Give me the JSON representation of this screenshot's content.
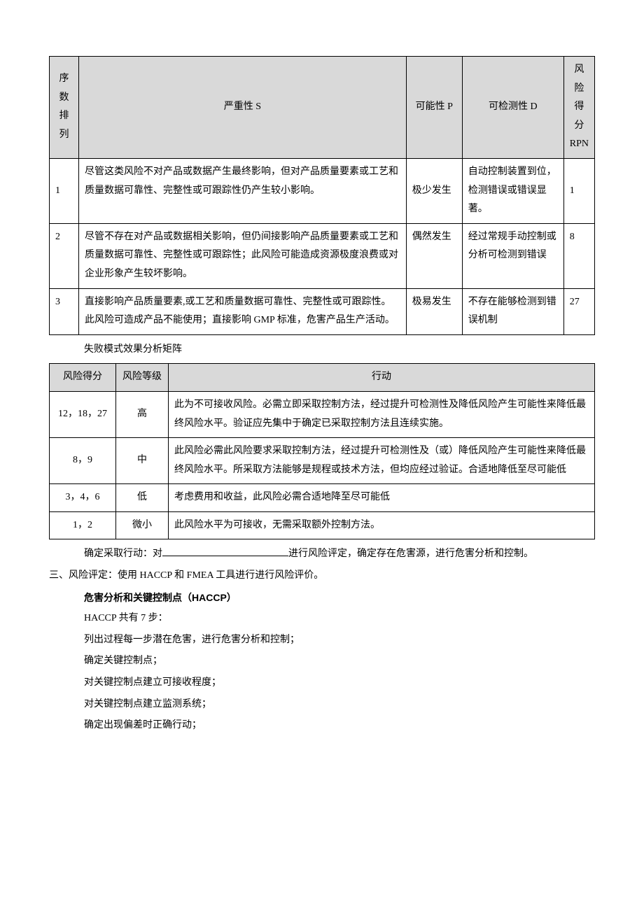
{
  "table1": {
    "headers": {
      "seq": "序数排列",
      "severity": "严重性 S",
      "probability": "可能性 P",
      "detectability": "可检测性 D",
      "rpn": "风险得分RPN"
    },
    "rows": [
      {
        "seq": "1",
        "severity": "尽管这类风险不对产品或数据产生最终影响，但对产品质量要素或工艺和质量数据可靠性、完整性或可跟踪性仍产生较小影响。",
        "probability": "极少发生",
        "detectability": "自动控制装置到位，检测错误或错误显著。",
        "rpn": "1"
      },
      {
        "seq": "2",
        "severity": "尽管不存在对产品或数据相关影响，但仍间接影响产品质量要素或工艺和质量数据可靠性、完整性或可跟踪性；此风险可能造成资源极度浪费或对企业形象产生较坏影响。",
        "probability": "偶然发生",
        "detectability": "经过常规手动控制或分析可检测到错误",
        "rpn": "8"
      },
      {
        "seq": "3",
        "severity": "直接影响产品质量要素,或工艺和质量数据可靠性、完整性或可跟踪性。此风险可造成产品不能使用；直接影响 GMP 标准，危害产品生产活动。",
        "probability": "极易发生",
        "detectability": "不存在能够检测到错误机制",
        "rpn": "27"
      }
    ]
  },
  "caption1": "失败模式效果分析矩阵",
  "table2": {
    "headers": {
      "score": "风险得分",
      "level": "风险等级",
      "action": "行动"
    },
    "rows": [
      {
        "score": "12，18，27",
        "level": "高",
        "action": "此为不可接收风险。必需立即采取控制方法，经过提升可检测性及降低风险产生可能性来降低最终风险水平。验证应先集中于确定已采取控制方法且连续实施。"
      },
      {
        "score": "8，9",
        "level": "中",
        "action": "此风险必需此风险要求采取控制方法，经过提升可检测性及（或）降低风险产生可能性来降低最终风险水平。所采取方法能够是规程或技术方法，但均应经过验证。合适地降低至尽可能低"
      },
      {
        "score": "3，4，6",
        "level": "低",
        "action": "考虑费用和收益，此风险必需合适地降至尽可能低"
      },
      {
        "score": "1，2",
        "level": "微小",
        "action": "此风险水平为可接收，无需采取额外控制方法。"
      }
    ]
  },
  "paras": {
    "p1a": "确定采取行动：对",
    "p1b": "进行风险评定，确定存在危害源，进行危害分析和控制。",
    "p2": "三、风险评定：使用 HACCP 和 FMEA 工具进行进行风险评价。",
    "p3": "危害分析和关键控制点（HACCP）",
    "p4": "HACCP 共有 7 步：",
    "p5": "列出过程每一步潜在危害，进行危害分析和控制；",
    "p6": "确定关键控制点；",
    "p7": "对关键控制点建立可接收程度；",
    "p8": "对关键控制点建立监测系统；",
    "p9": "确定出现偏差时正确行动；"
  }
}
